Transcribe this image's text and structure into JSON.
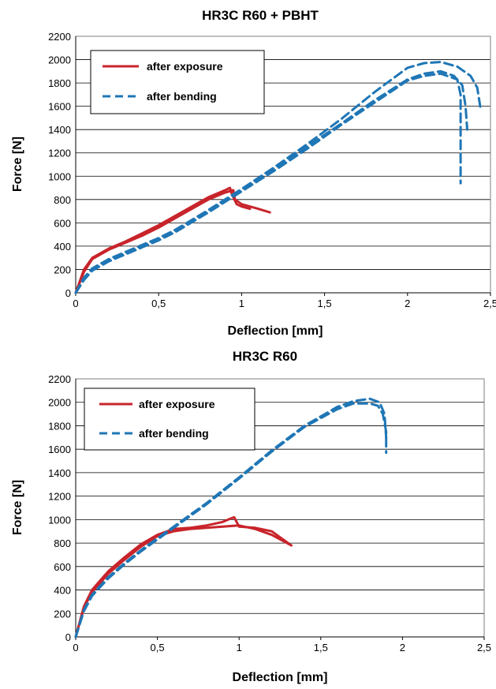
{
  "chart_data": [
    {
      "type": "line",
      "title": "HR3C R60 + PBHT",
      "xlabel": "Deflection [mm]",
      "ylabel": "Force [N]",
      "xlim": [
        0,
        2.5
      ],
      "ylim": [
        0,
        2200
      ],
      "x_ticks": [
        "0",
        "0,5",
        "1",
        "1,5",
        "2",
        "2,5"
      ],
      "y_ticks": [
        "0",
        "200",
        "400",
        "600",
        "800",
        "1000",
        "1200",
        "1400",
        "1600",
        "1800",
        "2000",
        "2200"
      ],
      "grid": true,
      "legend_position": "top-left",
      "colors": {
        "exposure": "#c8242b",
        "bending": "#1f76b5"
      },
      "series": [
        {
          "name": "after exposure",
          "style": "solid",
          "color": "#c8242b",
          "x": [
            0,
            0.05,
            0.1,
            0.2,
            0.3,
            0.4,
            0.5,
            0.6,
            0.7,
            0.8,
            0.9,
            0.93,
            0.94,
            0.97,
            1.0,
            1.05
          ],
          "y": [
            0,
            200,
            300,
            380,
            440,
            510,
            580,
            660,
            740,
            820,
            880,
            900,
            850,
            760,
            740,
            720
          ]
        },
        {
          "name": "",
          "style": "solid",
          "color": "#c8242b",
          "x": [
            0,
            0.05,
            0.1,
            0.2,
            0.3,
            0.4,
            0.5,
            0.6,
            0.7,
            0.8,
            0.9,
            0.95,
            0.96,
            1.0,
            1.1,
            1.17
          ],
          "y": [
            0,
            180,
            290,
            370,
            430,
            490,
            560,
            640,
            720,
            800,
            860,
            880,
            800,
            760,
            720,
            690
          ]
        },
        {
          "name": "after bending",
          "style": "dashed",
          "color": "#1f76b5",
          "x": [
            0,
            0.05,
            0.1,
            0.2,
            0.3,
            0.4,
            0.5,
            0.6,
            0.8,
            1.0,
            1.2,
            1.4,
            1.6,
            1.8,
            2.0,
            2.1,
            2.2,
            2.28,
            2.33,
            2.35,
            2.36
          ],
          "y": [
            0,
            120,
            200,
            280,
            340,
            400,
            460,
            530,
            700,
            880,
            1070,
            1260,
            1450,
            1650,
            1830,
            1880,
            1900,
            1860,
            1780,
            1600,
            1400
          ]
        },
        {
          "name": "",
          "style": "dashed",
          "color": "#1f76b5",
          "x": [
            0,
            0.05,
            0.1,
            0.2,
            0.3,
            0.4,
            0.5,
            0.6,
            0.8,
            1.0,
            1.2,
            1.4,
            1.6,
            1.8,
            2.0,
            2.1,
            2.2,
            2.3,
            2.32,
            2.32
          ],
          "y": [
            0,
            110,
            190,
            270,
            330,
            390,
            450,
            520,
            690,
            870,
            1050,
            1240,
            1440,
            1630,
            1820,
            1860,
            1880,
            1830,
            1700,
            940
          ]
        },
        {
          "name": "",
          "style": "dashed",
          "color": "#1f76b5",
          "x": [
            0,
            0.05,
            0.1,
            0.2,
            0.3,
            0.4,
            0.5,
            0.6,
            0.8,
            1.0,
            1.2,
            1.4,
            1.6,
            1.8,
            2.0,
            2.1,
            2.2,
            2.3,
            2.38,
            2.42,
            2.44
          ],
          "y": [
            0,
            130,
            210,
            290,
            350,
            410,
            470,
            540,
            710,
            890,
            1080,
            1280,
            1490,
            1720,
            1930,
            1970,
            1980,
            1940,
            1860,
            1760,
            1580
          ]
        }
      ]
    },
    {
      "type": "line",
      "title": "HR3C R60",
      "xlabel": "Deflection [mm]",
      "ylabel": "Force [N]",
      "xlim": [
        0,
        2.5
      ],
      "ylim": [
        0,
        2200
      ],
      "x_ticks": [
        "0",
        "0,5",
        "1",
        "1,5",
        "2",
        "2,5"
      ],
      "y_ticks": [
        "0",
        "200",
        "400",
        "600",
        "800",
        "1000",
        "1200",
        "1400",
        "1600",
        "1800",
        "2000",
        "2200"
      ],
      "grid": true,
      "legend_position": "top-left",
      "colors": {
        "exposure": "#c8242b",
        "bending": "#1f76b5"
      },
      "series": [
        {
          "name": "after exposure",
          "style": "solid",
          "color": "#c8242b",
          "x": [
            0,
            0.05,
            0.1,
            0.2,
            0.3,
            0.4,
            0.5,
            0.6,
            0.7,
            0.8,
            0.9,
            0.95,
            0.97,
            1.0,
            1.1,
            1.2,
            1.25,
            1.3
          ],
          "y": [
            0,
            260,
            400,
            560,
            680,
            790,
            870,
            920,
            930,
            950,
            980,
            1010,
            1020,
            940,
            930,
            900,
            850,
            800
          ]
        },
        {
          "name": "",
          "style": "solid",
          "color": "#c8242b",
          "x": [
            0,
            0.05,
            0.1,
            0.2,
            0.3,
            0.4,
            0.5,
            0.6,
            0.7,
            0.8,
            0.9,
            1.0,
            1.1,
            1.2,
            1.32
          ],
          "y": [
            0,
            250,
            380,
            540,
            660,
            770,
            860,
            900,
            920,
            930,
            940,
            950,
            920,
            870,
            780
          ]
        },
        {
          "name": "after bending",
          "style": "dashed",
          "color": "#1f76b5",
          "x": [
            0,
            0.05,
            0.1,
            0.2,
            0.3,
            0.4,
            0.5,
            0.6,
            0.8,
            1.0,
            1.2,
            1.4,
            1.6,
            1.7,
            1.8,
            1.85,
            1.88,
            1.9,
            1.9
          ],
          "y": [
            0,
            220,
            350,
            500,
            620,
            730,
            830,
            930,
            1130,
            1350,
            1580,
            1790,
            1940,
            1990,
            1990,
            1970,
            1900,
            1750,
            1570
          ]
        },
        {
          "name": "",
          "style": "dashed",
          "color": "#1f76b5",
          "x": [
            0,
            0.05,
            0.1,
            0.2,
            0.3,
            0.4,
            0.5,
            0.6,
            0.8,
            1.0,
            1.2,
            1.4,
            1.6,
            1.7,
            1.8,
            1.86,
            1.89,
            1.9
          ],
          "y": [
            0,
            230,
            360,
            510,
            630,
            740,
            840,
            940,
            1140,
            1360,
            1590,
            1800,
            1960,
            2010,
            2030,
            2000,
            1900,
            1700
          ]
        }
      ]
    }
  ]
}
